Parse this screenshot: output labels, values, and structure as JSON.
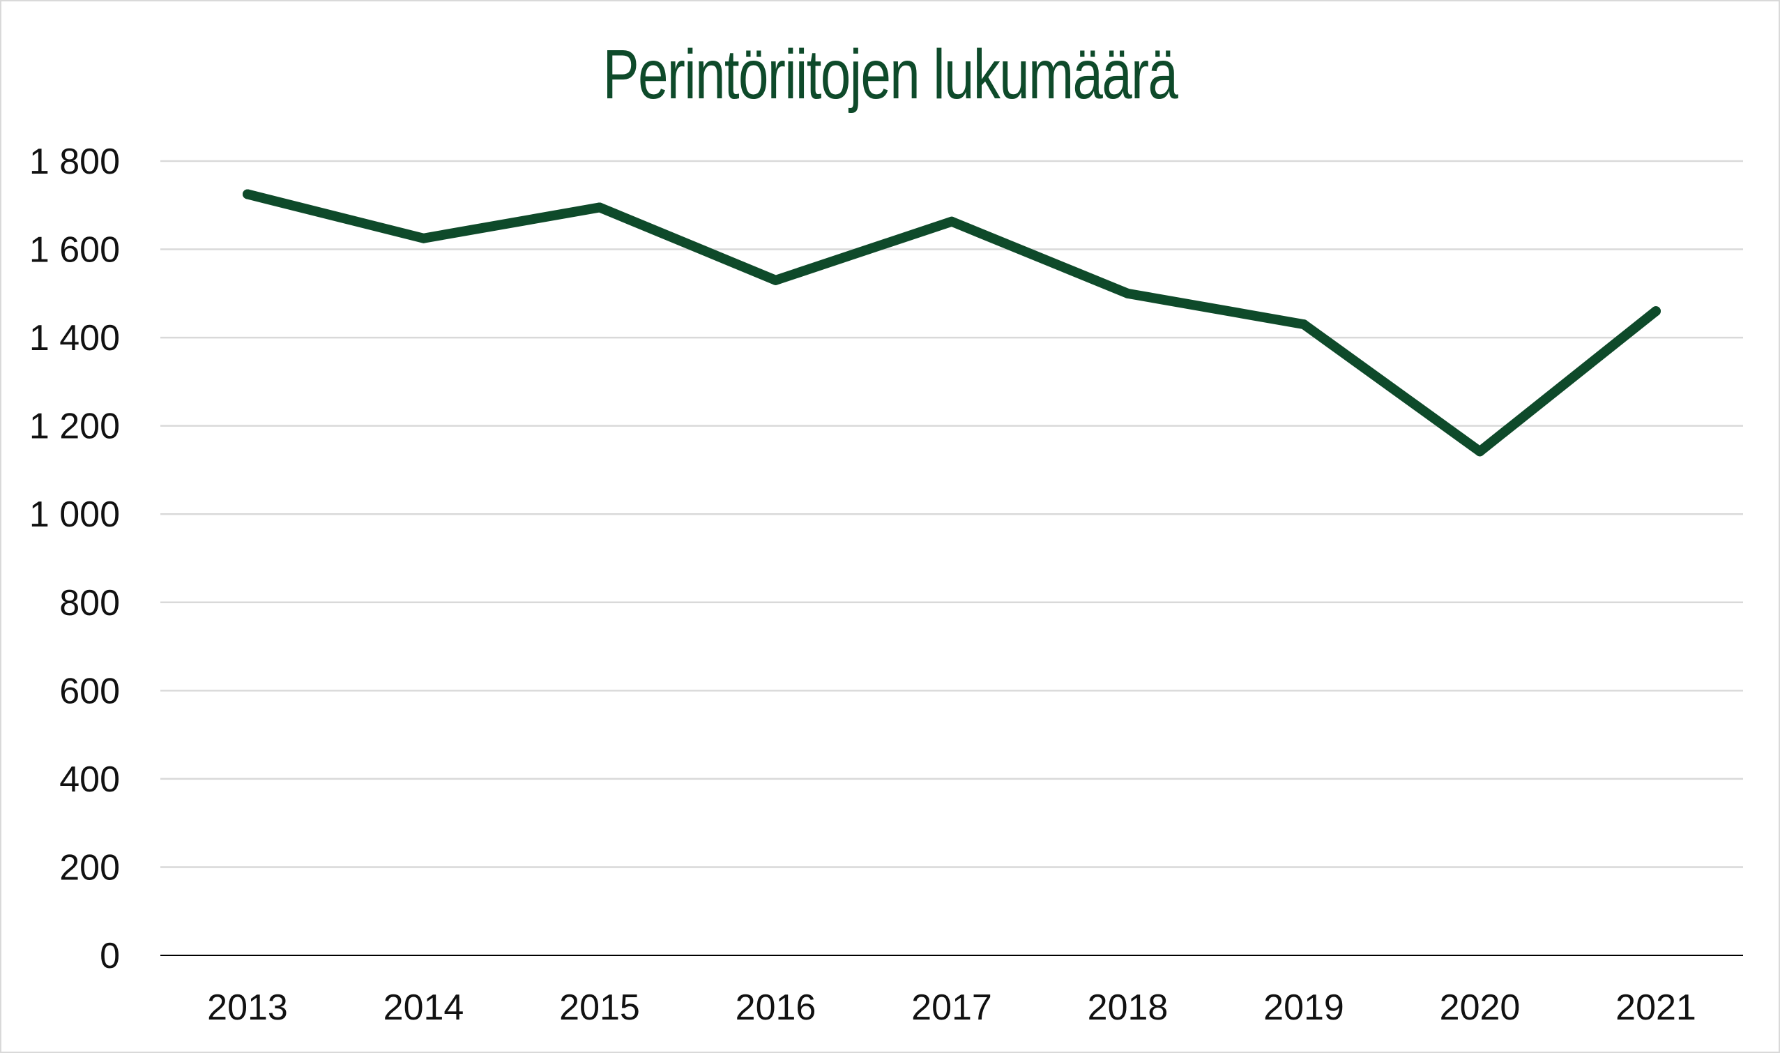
{
  "chart_data": {
    "type": "line",
    "title": "Perintöriitojen lukumäärä",
    "xlabel": "",
    "ylabel": "",
    "categories": [
      "2013",
      "2014",
      "2015",
      "2016",
      "2017",
      "2018",
      "2019",
      "2020",
      "2021"
    ],
    "series": [
      {
        "values": [
          1725,
          1625,
          1695,
          1530,
          1663,
          1500,
          1430,
          1142,
          1460
        ]
      }
    ],
    "ylim": [
      0,
      1800
    ],
    "yticks": [
      0,
      200,
      400,
      600,
      800,
      1000,
      1200,
      1400,
      1600,
      1800
    ],
    "ytick_labels": [
      "0",
      "200",
      "400",
      "600",
      "800",
      "1 000",
      "1 200",
      "1 400",
      "1 600",
      "1 800"
    ],
    "grid": true,
    "legend": "none",
    "colors": {
      "line": "#0e4a2a",
      "title": "#0e4a2a",
      "grid": "#d9d9d9",
      "axis": "#000000"
    }
  }
}
